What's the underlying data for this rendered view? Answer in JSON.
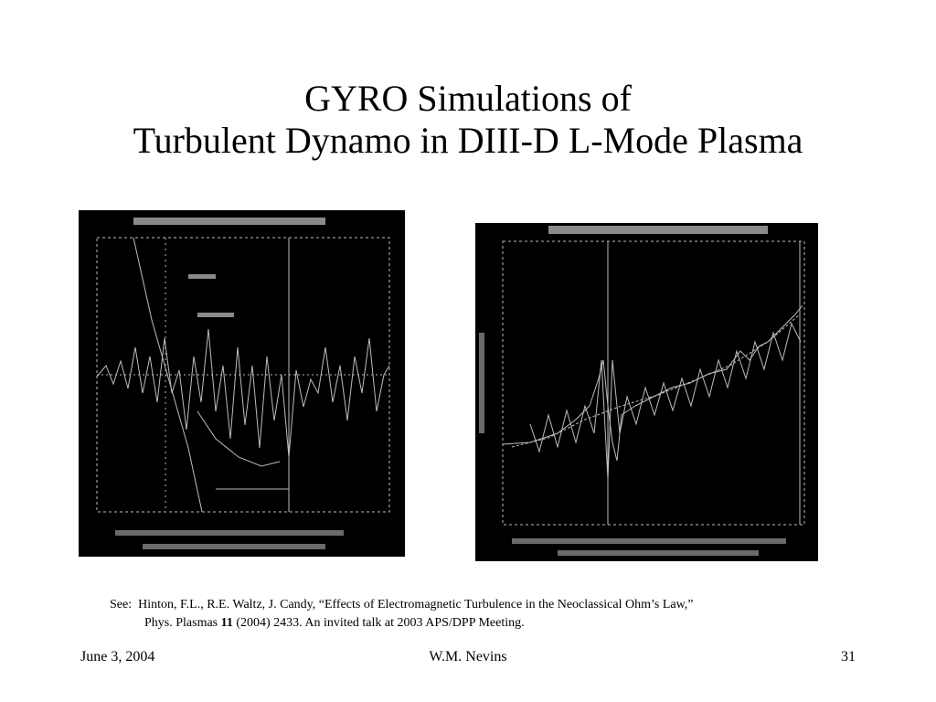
{
  "slide": {
    "title_line1": "GYRO Simulations of",
    "title_line2": "Turbulent Dynamo in DIII-D L-Mode Plasma"
  },
  "citation": {
    "prefix": "See:",
    "line1": "Hinton, F.L., R.E. Waltz, J. Candy, “Effects of Electromagnetic Turbulence in the Neoclassical Ohm’s Law,”",
    "line2_journal": "Phys. Plasmas ",
    "line2_volume": "11",
    "line2_rest": " (2004) 2433.  An invited talk at 2003 APS/DPP Meeting."
  },
  "footer": {
    "date": "June 3, 2004",
    "author": "W.M. Nevins",
    "page": "31"
  },
  "colors": {
    "background": "#ffffff",
    "figure_background": "#000000",
    "figure_ink": "#cfcfcf"
  },
  "figures": {
    "left": {
      "name": "scanned plot (illegible)"
    },
    "right": {
      "name": "scanned plot (illegible)"
    }
  }
}
